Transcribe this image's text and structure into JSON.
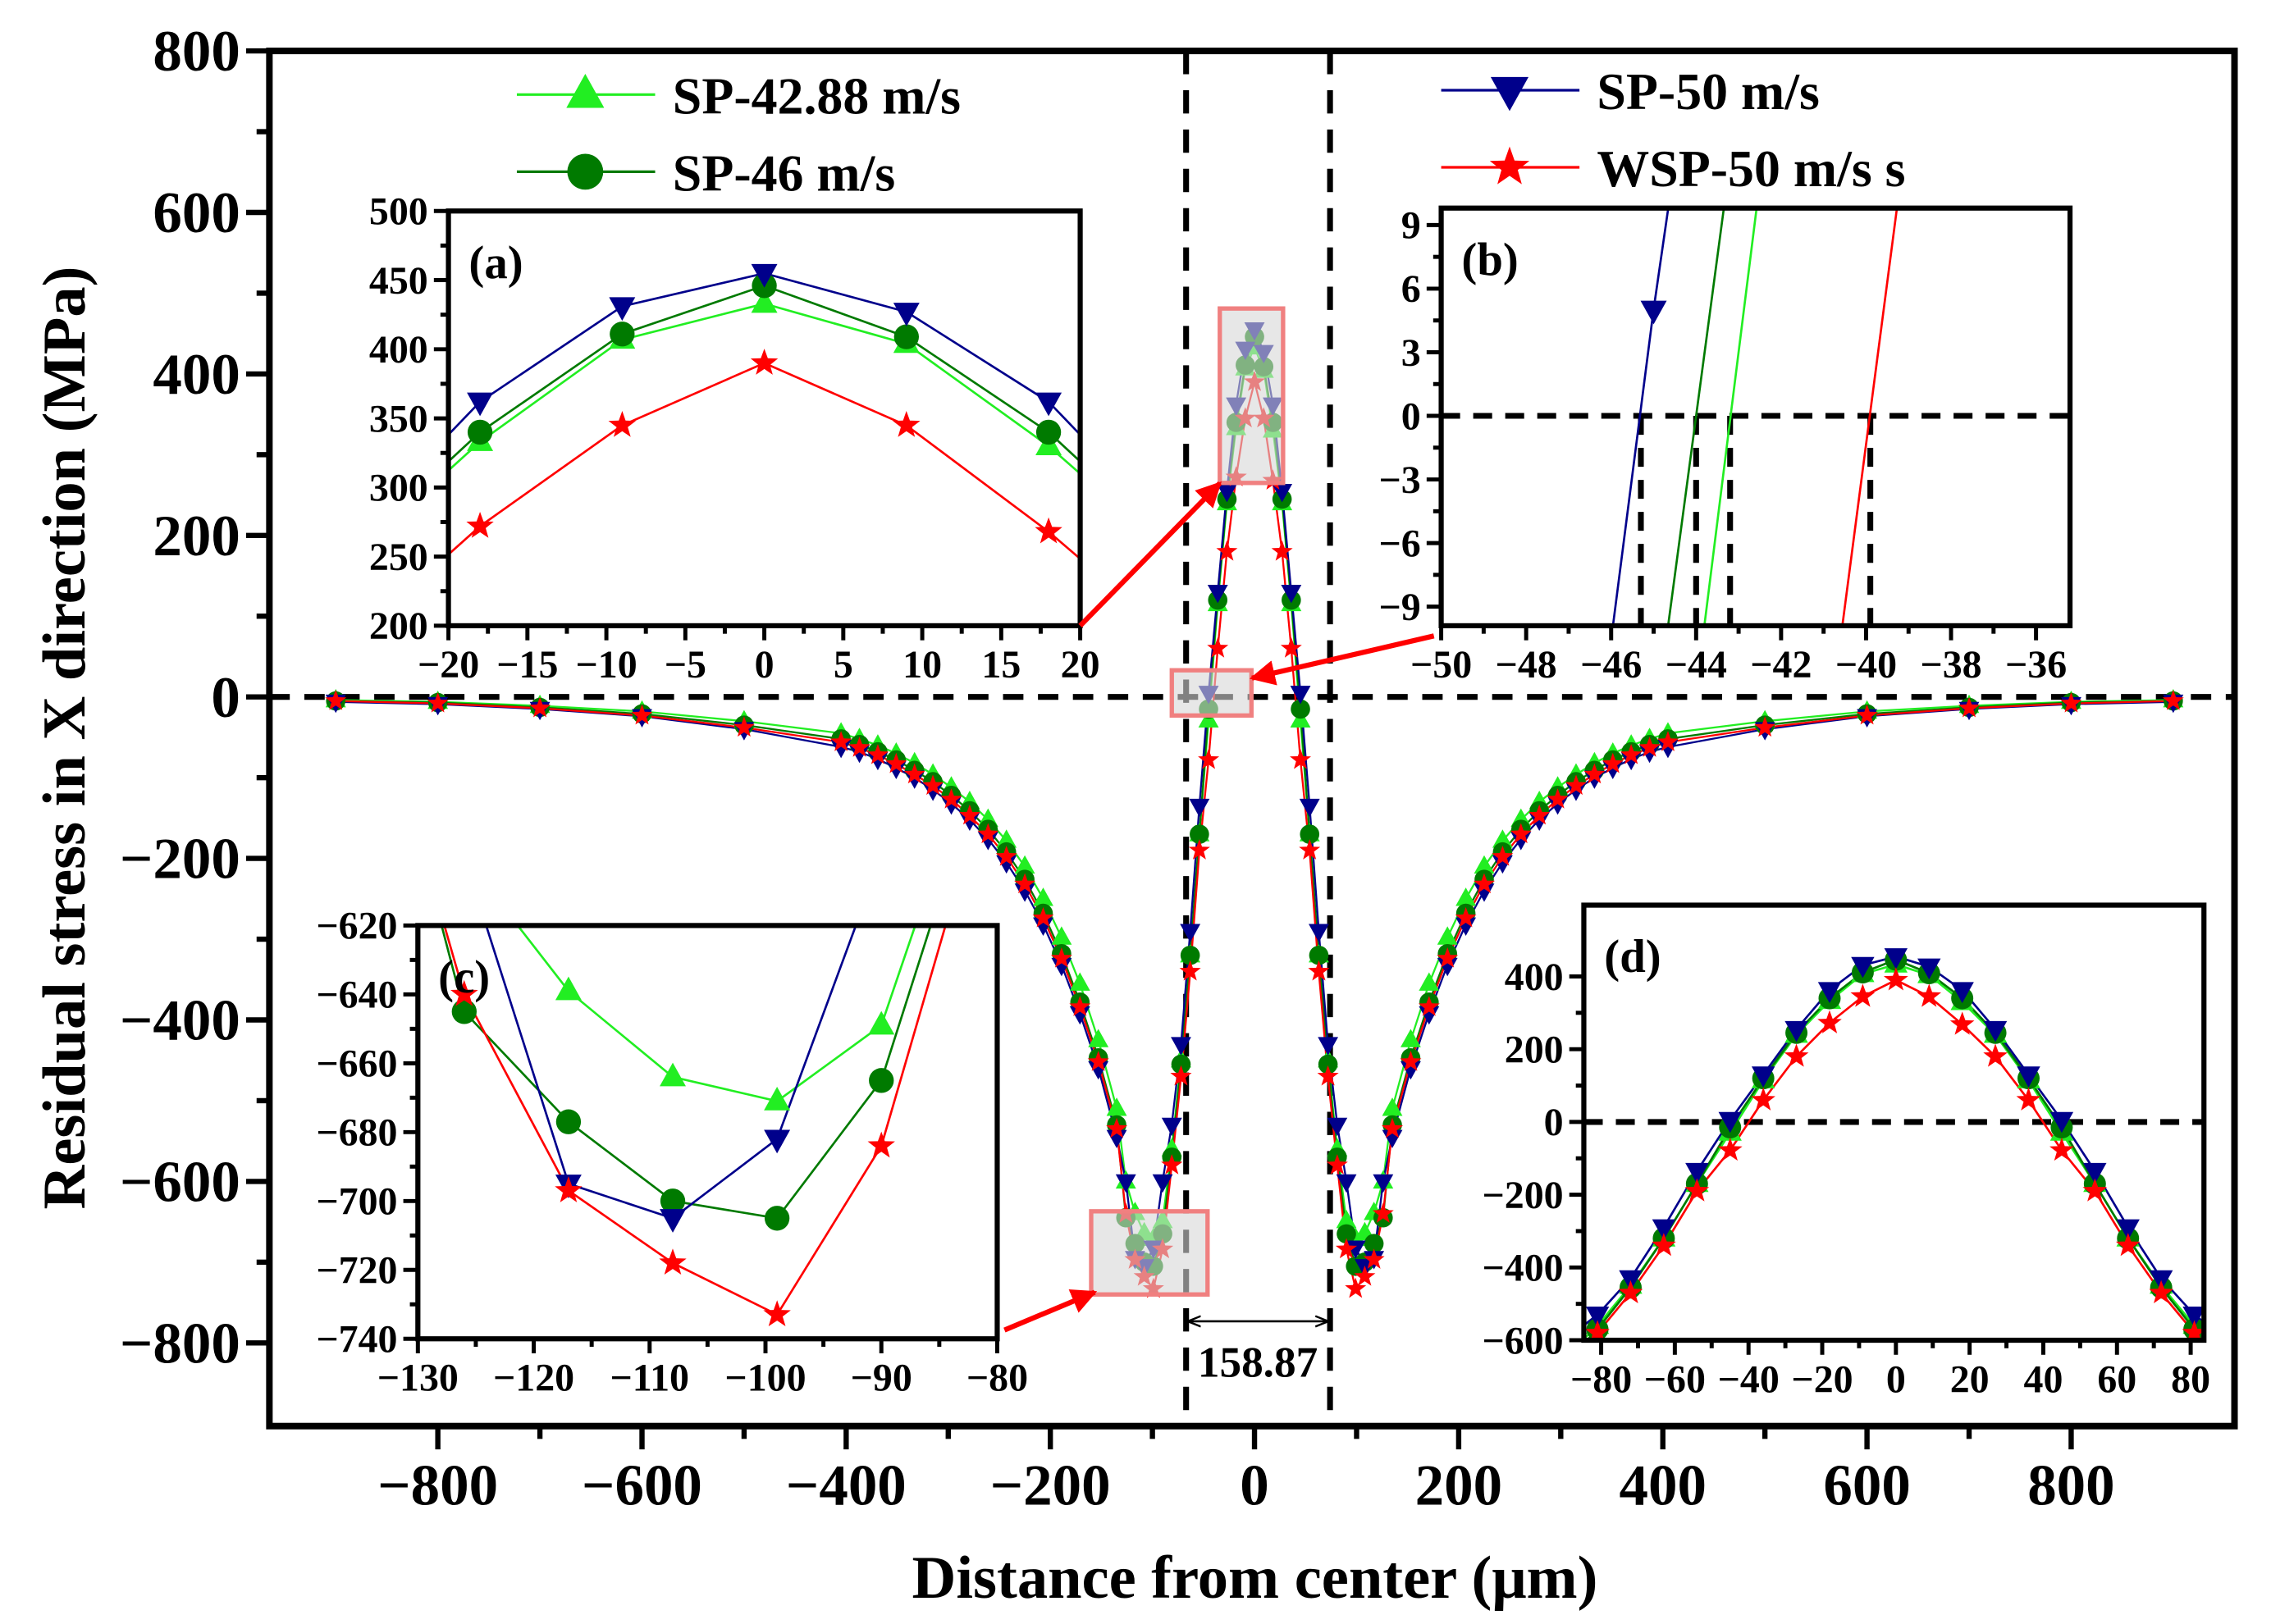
{
  "chart_data": {
    "type": "line",
    "xlabel": "Distance from center (μm)",
    "ylabel": "Residual stress in X direction (MPa)",
    "xlim": [
      -965,
      960
    ],
    "ylim": [
      -903,
      800
    ],
    "xticks": [
      -800,
      -600,
      -400,
      -200,
      0,
      200,
      400,
      600,
      800
    ],
    "xtick_labels": [
      "−800",
      "−600",
      "−400",
      "−200",
      "0",
      "200",
      "400",
      "600",
      "800"
    ],
    "yticks": [
      800,
      600,
      400,
      200,
      0,
      -200,
      -400,
      -600,
      -800
    ],
    "ytick_labels": [
      "800",
      "600",
      "400",
      "200",
      "0",
      "−200",
      "−400",
      "−600",
      "−800"
    ],
    "grid": false,
    "legend": [
      {
        "label": "SP-42.88 m/s",
        "series": 0,
        "placement": "top-left"
      },
      {
        "label": "SP-46 m/s",
        "series": 1,
        "placement": "top-left"
      },
      {
        "label": "SP-50 m/s",
        "series": 2,
        "placement": "top-right"
      },
      {
        "label": "WSP-50 m/s s",
        "series": 3,
        "placement": "top-right"
      }
    ],
    "x": [
      -900,
      -800,
      -700,
      -600,
      -500,
      -405,
      -387,
      -369,
      -351,
      -333,
      -315,
      -297,
      -279,
      -261,
      -243,
      -225,
      -207,
      -189,
      -171,
      -153,
      -135,
      -126,
      -117,
      -108,
      -99,
      -90,
      -81,
      -72,
      -63,
      -54,
      -45,
      -36,
      -27,
      -18,
      -9,
      0,
      9,
      18,
      27,
      36,
      45,
      54,
      63,
      72,
      81,
      90,
      99,
      108,
      117,
      126,
      135,
      153,
      171,
      189,
      207,
      225,
      243,
      261,
      279,
      297,
      315,
      333,
      351,
      369,
      387,
      405,
      500,
      600,
      700,
      800,
      900
    ],
    "series": [
      {
        "name": "SP-42.88 m/s",
        "color": "#22ee22",
        "marker": "triangle-up",
        "values": [
          -4,
          -6,
          -11,
          -18,
          -30,
          -45,
          -52,
          -60,
          -70,
          -82,
          -96,
          -112,
          -130,
          -152,
          -178,
          -210,
          -250,
          -298,
          -355,
          -425,
          -510,
          -600,
          -639,
          -664,
          -671,
          -649,
          -560,
          -450,
          -320,
          -170,
          -29,
          115,
          240,
          333,
          407,
          433,
          404,
          330,
          240,
          115,
          -29,
          -170,
          -320,
          -450,
          -560,
          -649,
          -671,
          -664,
          -639,
          -600,
          -510,
          -425,
          -355,
          -298,
          -250,
          -210,
          -178,
          -152,
          -130,
          -112,
          -96,
          -82,
          -70,
          -60,
          -52,
          -45,
          -30,
          -18,
          -11,
          -6,
          -4
        ]
      },
      {
        "name": "SP-46 m/s",
        "color": "#007a00",
        "marker": "circle",
        "values": [
          -5,
          -7,
          -13,
          -21,
          -35,
          -52,
          -59,
          -68,
          -78,
          -91,
          -105,
          -122,
          -141,
          -164,
          -192,
          -226,
          -268,
          -318,
          -378,
          -447,
          -530,
          -645,
          -677,
          -700,
          -705,
          -665,
          -570,
          -455,
          -320,
          -170,
          -15,
          120,
          245,
          340,
          411,
          446,
          409,
          340,
          245,
          120,
          -15,
          -170,
          -320,
          -455,
          -570,
          -665,
          -705,
          -700,
          -677,
          -645,
          -530,
          -447,
          -378,
          -318,
          -268,
          -226,
          -192,
          -164,
          -141,
          -122,
          -105,
          -91,
          -78,
          -68,
          -59,
          -52,
          -35,
          -21,
          -13,
          -7,
          -5
        ]
      },
      {
        "name": "SP-50 m/s",
        "color": "#00008b",
        "marker": "triangle-down",
        "values": [
          -6,
          -9,
          -15,
          -24,
          -40,
          -62,
          -68,
          -77,
          -88,
          -100,
          -115,
          -132,
          -152,
          -176,
          -205,
          -240,
          -282,
          -332,
          -392,
          -460,
          -545,
          -600,
          -695,
          -705,
          -682,
          -600,
          -530,
          -430,
          -290,
          -135,
          5,
          130,
          255,
          362,
          431,
          455,
          427,
          362,
          255,
          130,
          5,
          -135,
          -290,
          -430,
          -530,
          -600,
          -682,
          -705,
          -695,
          -600,
          -545,
          -460,
          -392,
          -332,
          -282,
          -240,
          -205,
          -176,
          -152,
          -132,
          -115,
          -100,
          -88,
          -77,
          -68,
          -62,
          -40,
          -24,
          -15,
          -9,
          -6
        ]
      },
      {
        "name": "WSP-50 m/s",
        "color": "#ff0000",
        "marker": "star",
        "values": [
          -5,
          -8,
          -14,
          -23,
          -38,
          -56,
          -63,
          -72,
          -83,
          -96,
          -110,
          -127,
          -147,
          -170,
          -198,
          -232,
          -274,
          -324,
          -384,
          -452,
          -535,
          -640,
          -697,
          -718,
          -733,
          -684,
          -580,
          -470,
          -340,
          -190,
          -78,
          60,
          180,
          272,
          345,
          390,
          345,
          268,
          180,
          60,
          -78,
          -190,
          -340,
          -470,
          -580,
          -684,
          -733,
          -718,
          -697,
          -640,
          -535,
          -452,
          -384,
          -324,
          -274,
          -232,
          -198,
          -170,
          -147,
          -127,
          -110,
          -96,
          -83,
          -72,
          -63,
          -56,
          -38,
          -23,
          -14,
          -8,
          -5
        ]
      }
    ],
    "reference_lines": {
      "horizontal_y": 0,
      "vertical_x": [
        -67,
        74
      ]
    },
    "annotations": {
      "width_label": "158.87",
      "zoom_regions": [
        {
          "inset": "a",
          "x": [
            -34,
            28
          ],
          "y": [
            265,
            481
          ]
        },
        {
          "inset": "b",
          "x": [
            -81,
            -3
          ],
          "y": [
            -23,
            33
          ]
        },
        {
          "inset": "c",
          "x": [
            -160,
            -46
          ],
          "y": [
            -740,
            -637
          ]
        }
      ]
    },
    "insets": [
      {
        "id": "a",
        "label": "(a)",
        "xlim": [
          -20,
          20
        ],
        "ylim": [
          200,
          500
        ],
        "xticks": [
          -20,
          -15,
          -10,
          -5,
          0,
          5,
          10,
          15,
          20
        ],
        "xtick_labels": [
          "−20",
          "−15",
          "−10",
          "−5",
          "0",
          "5",
          "10",
          "15",
          "20"
        ],
        "yticks": [
          200,
          250,
          300,
          350,
          400,
          450,
          500
        ],
        "ytick_labels": [
          "200",
          "250",
          "300",
          "350",
          "400",
          "450",
          "500"
        ],
        "zero_line": false,
        "markers": true
      },
      {
        "id": "b",
        "label": "(b)",
        "xlim": [
          -50,
          -35.2
        ],
        "ylim": [
          -9.9,
          9.8
        ],
        "xticks": [
          -50,
          -48,
          -46,
          -44,
          -42,
          -40,
          -38,
          -36
        ],
        "xtick_labels": [
          "−50",
          "−48",
          "−46",
          "−44",
          "−42",
          "−40",
          "−38",
          "−36"
        ],
        "yticks": [
          9,
          6,
          3,
          0,
          -3,
          -6,
          -9
        ],
        "ytick_labels": [
          "9",
          "6",
          "3",
          "0",
          "−3",
          "−6",
          "−9"
        ],
        "zero_line": true,
        "zero_crossings": [
          -45.3,
          -44.0,
          -43.2,
          -39.9
        ],
        "markers": true
      },
      {
        "id": "c",
        "label": "(c)",
        "xlim": [
          -130,
          -80
        ],
        "ylim": [
          -740,
          -620
        ],
        "xticks": [
          -130,
          -120,
          -110,
          -100,
          -90,
          -80
        ],
        "xtick_labels": [
          "−130",
          "−120",
          "−110",
          "−100",
          "−90",
          "−80"
        ],
        "yticks": [
          -620,
          -640,
          -660,
          -680,
          -700,
          -720,
          -740
        ],
        "ytick_labels": [
          "−620",
          "−640",
          "−660",
          "−680",
          "−700",
          "−720",
          "−740"
        ],
        "zero_line": false,
        "markers": true
      },
      {
        "id": "d",
        "label": "(d)",
        "xlim": [
          -84.7,
          83.6
        ],
        "ylim": [
          -600,
          596
        ],
        "xticks": [
          -80,
          -60,
          -40,
          -20,
          0,
          20,
          40,
          60,
          80
        ],
        "xtick_labels": [
          "−80",
          "−60",
          "−40",
          "−20",
          "0",
          "20",
          "40",
          "60",
          "80"
        ],
        "yticks": [
          400,
          200,
          0,
          -200,
          -400,
          -600
        ],
        "ytick_labels": [
          "400",
          "200",
          "0",
          "−200",
          "−400",
          "−600"
        ],
        "zero_line": true,
        "markers": true
      }
    ]
  }
}
